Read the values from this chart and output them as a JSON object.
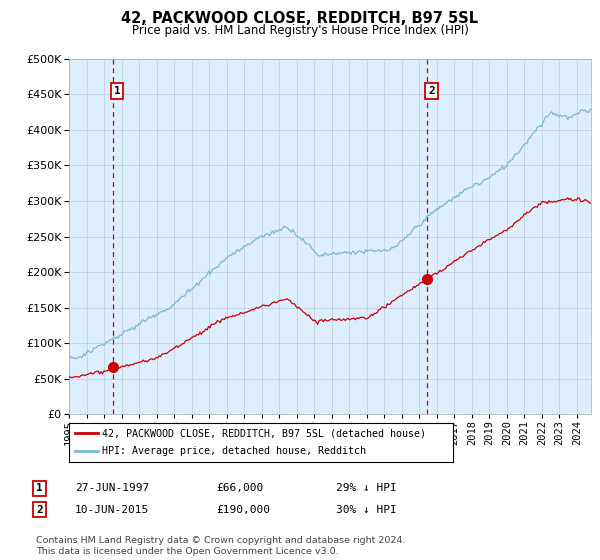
{
  "title": "42, PACKWOOD CLOSE, REDDITCH, B97 5SL",
  "subtitle": "Price paid vs. HM Land Registry's House Price Index (HPI)",
  "legend_line1": "42, PACKWOOD CLOSE, REDDITCH, B97 5SL (detached house)",
  "legend_line2": "HPI: Average price, detached house, Redditch",
  "sale1_date": "27-JUN-1997",
  "sale1_price": "£66,000",
  "sale1_hpi": "29% ↓ HPI",
  "sale1_year": 1997.49,
  "sale1_value": 66000,
  "sale2_date": "10-JUN-2015",
  "sale2_price": "£190,000",
  "sale2_hpi": "30% ↓ HPI",
  "sale2_year": 2015.44,
  "sale2_value": 190000,
  "footer": "Contains HM Land Registry data © Crown copyright and database right 2024.\nThis data is licensed under the Open Government Licence v3.0.",
  "hpi_color": "#7ab8d8",
  "price_color": "#cc0000",
  "marker_color": "#cc0000",
  "dashed_line_color": "#cc0000",
  "bg_color": "#ddeeff",
  "grid_color": "#bbccdd",
  "ylim": [
    0,
    500000
  ],
  "xlim": [
    1995.0,
    2024.8
  ]
}
